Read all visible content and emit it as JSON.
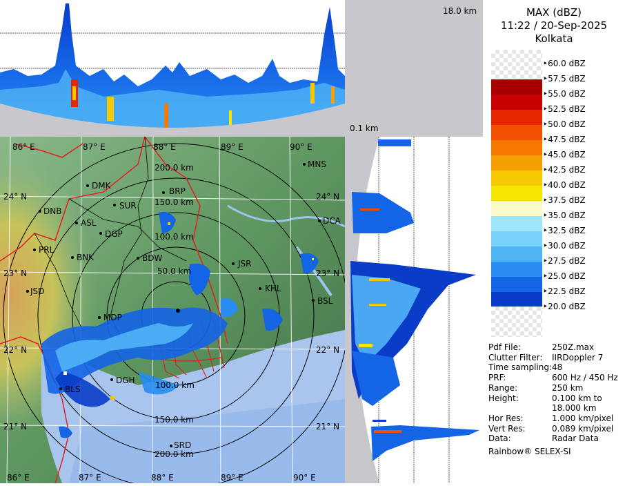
{
  "header": {
    "product": "MAX (dBZ)",
    "datetime": "11:22 / 20-Sep-2025",
    "station": "Kolkata"
  },
  "profile_labels": {
    "top_height": "18.0 km",
    "bottom_height": "0.1 km"
  },
  "map": {
    "lon_top": [
      "86° E",
      "87° E",
      "88° E",
      "89° E",
      "90° E"
    ],
    "lon_bottom": [
      "86° E",
      "87° E",
      "88° E",
      "89° E",
      "90° E"
    ],
    "lat_left": [
      "24° N",
      "23° N",
      "22° N",
      "21° N"
    ],
    "lat_right": [
      "24° N",
      "23° N",
      "22° N",
      "21° N"
    ],
    "rings_north": [
      "200.0 km",
      "150.0 km",
      "100.0 km",
      "50.0 km"
    ],
    "rings_south": [
      "150.0 km",
      "200.0 km"
    ],
    "ring_100_south": "100.0 km",
    "cities": [
      {
        "id": "mns",
        "name": "MNS"
      },
      {
        "id": "dmk",
        "name": "DMK"
      },
      {
        "id": "brp",
        "name": "BRP"
      },
      {
        "id": "sur",
        "name": "SUR"
      },
      {
        "id": "dnb",
        "name": "DNB"
      },
      {
        "id": "asl",
        "name": "ASL"
      },
      {
        "id": "dgp",
        "name": "DGP"
      },
      {
        "id": "dca",
        "name": "DCA"
      },
      {
        "id": "prl",
        "name": "PRL"
      },
      {
        "id": "bnk",
        "name": "BNK"
      },
      {
        "id": "bdw",
        "name": "BDW"
      },
      {
        "id": "jsr",
        "name": "JSR"
      },
      {
        "id": "jsd",
        "name": "JSD"
      },
      {
        "id": "khl",
        "name": "KHL"
      },
      {
        "id": "bsl",
        "name": "BSL"
      },
      {
        "id": "mdp",
        "name": "MDP"
      },
      {
        "id": "dgh",
        "name": "DGH"
      },
      {
        "id": "bls",
        "name": "BLS"
      },
      {
        "id": "srd",
        "name": "SRD"
      }
    ]
  },
  "legend": {
    "levels": [
      "60.0 dBZ",
      "57.5 dBZ",
      "55.0 dBZ",
      "52.5 dBZ",
      "50.0 dBZ",
      "47.5 dBZ",
      "45.0 dBZ",
      "42.5 dBZ",
      "40.0 dBZ",
      "37.5 dBZ",
      "35.0 dBZ",
      "32.5 dBZ",
      "30.0 dBZ",
      "27.5 dBZ",
      "25.0 dBZ",
      "22.5 dBZ",
      "20.0 dBZ"
    ],
    "colors": [
      "#a80000",
      "#c80000",
      "#e62800",
      "#f05000",
      "#f57800",
      "#f5a000",
      "#f5c800",
      "#f5e600",
      "#fafac8",
      "#ffffff",
      "#a0e6fa",
      "#78d2fa",
      "#50b4f5",
      "#288cf0",
      "#1464e6",
      "#0a3cc8",
      "#00149b"
    ]
  },
  "info": [
    {
      "key": "Pdf File:",
      "value": "250Z.max"
    },
    {
      "key": "Clutter Filter:",
      "value": "IIRDoppler 7"
    },
    {
      "key": "Time sampling:",
      "value": "48"
    },
    {
      "key": "PRF:",
      "value": "600 Hz / 450 Hz"
    },
    {
      "key": "Range:",
      "value": "250 km"
    },
    {
      "key": "Height:",
      "value": "0.100 km to"
    },
    {
      "key": "",
      "value": "18.000 km"
    },
    {
      "key": "Hor Res:",
      "value": "1.000 km/pixel"
    },
    {
      "key": "Vert Res:",
      "value": "0.089 km/pixel"
    },
    {
      "key": "Data:",
      "value": "Radar Data"
    }
  ],
  "footer": "Rainbow® SELEX-SI"
}
